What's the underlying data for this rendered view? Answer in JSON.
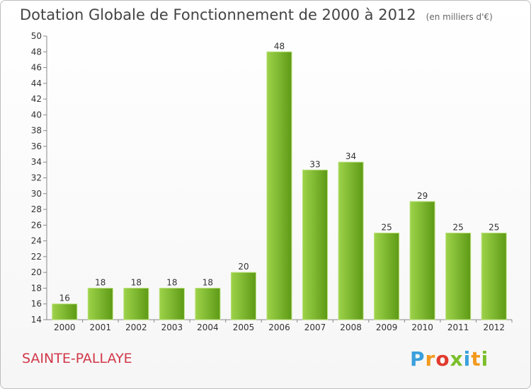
{
  "page": {
    "title": "Dotation Globale de Fonctionnement de 2000 à 2012",
    "unit": "(en milliers d'€)",
    "commune": "SAINTE-PALLAYE",
    "logo_text": "Proxiti"
  },
  "chart_data": {
    "type": "bar",
    "title": "Dotation Globale de Fonctionnement de 2000 à 2012",
    "subtitle": "(en milliers d'€)",
    "xlabel": "",
    "ylabel": "",
    "categories": [
      "2000",
      "2001",
      "2002",
      "2003",
      "2004",
      "2005",
      "2006",
      "2007",
      "2008",
      "2009",
      "2010",
      "2011",
      "2012"
    ],
    "values": [
      16,
      18,
      18,
      18,
      18,
      20,
      48,
      33,
      34,
      25,
      29,
      25,
      25
    ],
    "ylim": [
      14,
      50
    ],
    "yticks": [
      14,
      16,
      18,
      20,
      22,
      24,
      26,
      28,
      30,
      32,
      34,
      36,
      38,
      40,
      42,
      44,
      46,
      48,
      50
    ],
    "grid": false,
    "legend": "none",
    "colors": {
      "bar_top": "#9dd34a",
      "bar_bottom": "#5e9a16",
      "axis": "#888888",
      "label": "#333333"
    }
  }
}
